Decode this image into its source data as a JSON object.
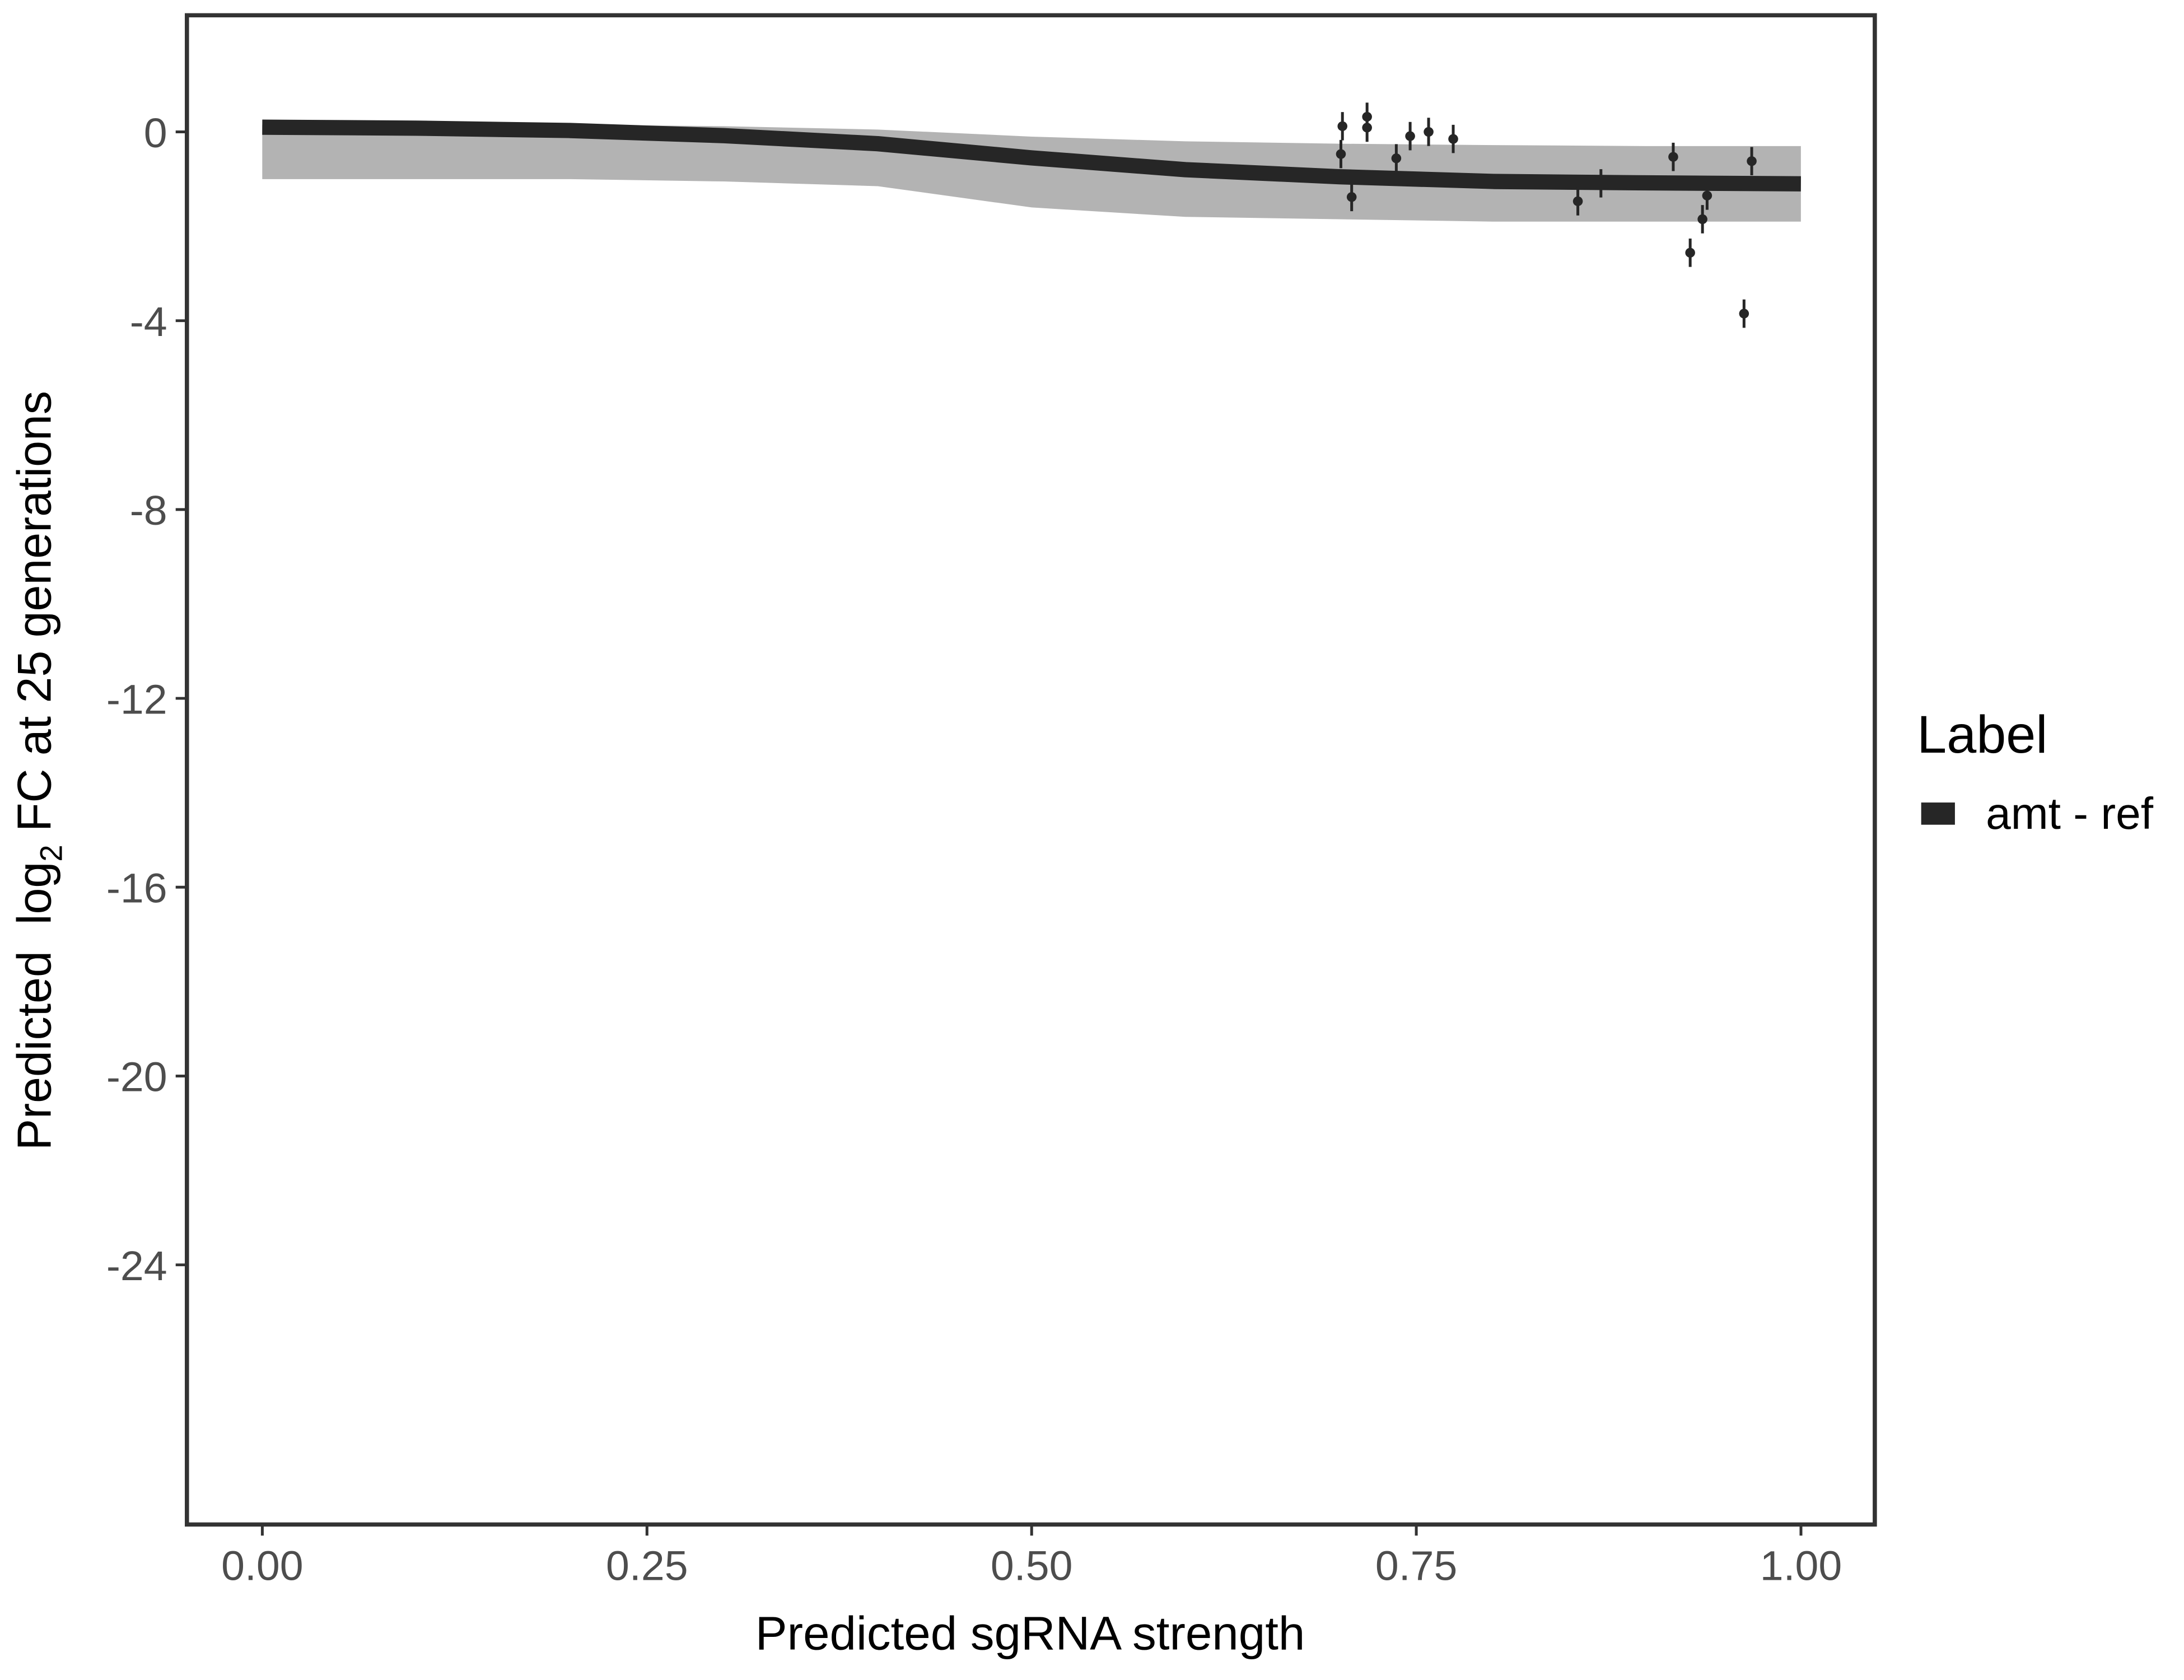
{
  "chart_data": {
    "type": "line",
    "x_label": "Predicted sgRNA strength",
    "y_label": {
      "prefix": "Predicted  log",
      "subscript": "2",
      "suffix": " FC at 25 generations"
    },
    "legend_title": "Label",
    "legend_position": "right",
    "x": [
      0,
      0.1,
      0.2,
      0.3,
      0.4,
      0.5,
      0.6,
      0.7,
      0.8,
      0.9,
      1.0
    ],
    "series": [
      {
        "name": "amt - ref",
        "color": "#262626",
        "values": [
          0.1,
          0.08,
          0.03,
          -0.08,
          -0.25,
          -0.55,
          -0.8,
          -0.95,
          -1.05,
          -1.08,
          -1.1
        ],
        "band_lower": [
          -1.0,
          -1.0,
          -1.0,
          -1.05,
          -1.15,
          -1.6,
          -1.8,
          -1.85,
          -1.9,
          -1.9,
          -1.9
        ],
        "band_upper": [
          0.15,
          0.15,
          0.15,
          0.12,
          0.05,
          -0.1,
          -0.2,
          -0.25,
          -0.28,
          -0.3,
          -0.3
        ],
        "band_color": "#a6a6a6"
      }
    ],
    "points": {
      "color": "#262626",
      "x": [
        0.701,
        0.702,
        0.708,
        0.718,
        0.718,
        0.737,
        0.746,
        0.758,
        0.774,
        0.855,
        0.87,
        0.917,
        0.928,
        0.936,
        0.939,
        0.963,
        0.968
      ],
      "y": [
        -0.47,
        0.12,
        -1.38,
        0.32,
        0.09,
        -0.56,
        -0.09,
        0.0,
        -0.15,
        -1.47,
        -1.09,
        -0.53,
        -2.56,
        -1.85,
        -1.35,
        -3.85,
        -0.62
      ],
      "error": [
        0.3,
        0.3,
        0.3,
        0.3,
        0.3,
        0.3,
        0.3,
        0.3,
        0.3,
        0.3,
        0.3,
        0.3,
        0.3,
        0.3,
        0.3,
        0.3,
        0.3
      ]
    },
    "xlim": [
      -0.049,
      1.048
    ],
    "ylim": [
      -29.5,
      2.47
    ],
    "xticks": [
      {
        "value": 0,
        "label": "0.00"
      },
      {
        "value": 0.25,
        "label": "0.25"
      },
      {
        "value": 0.5,
        "label": "0.50"
      },
      {
        "value": 0.75,
        "label": "0.75"
      },
      {
        "value": 1,
        "label": "1.00"
      }
    ],
    "yticks": [
      0,
      -4,
      -8,
      -12,
      -16,
      -20,
      -24
    ],
    "grid": false
  }
}
